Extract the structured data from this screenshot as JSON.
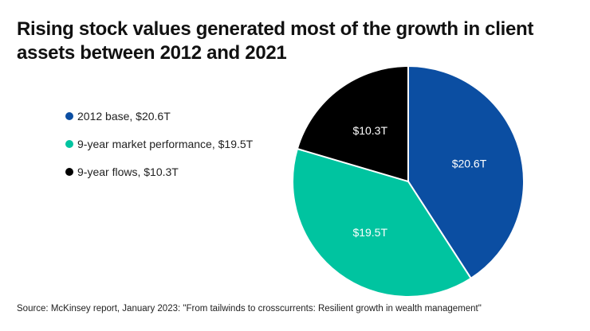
{
  "title": "Rising stock values generated most of the growth in client assets between 2012 and 2021",
  "source": "Source: McKinsey report, January 2023: \"From tailwinds to crosscurrents: Resilient growth in wealth management\"",
  "chart_data": {
    "type": "pie",
    "title": "Rising stock values generated most of the growth in client assets between 2012 and 2021",
    "legend_position": "left",
    "slices": [
      {
        "name": "2012 base, $20.6T",
        "value": 20.6,
        "label": "$20.6T",
        "color": "#0b4ea2"
      },
      {
        "name": "9-year market performance, $19.5T",
        "value": 19.5,
        "label": "$19.5T",
        "color": "#00c4a0"
      },
      {
        "name": "9-year flows, $10.3T",
        "value": 10.3,
        "label": "$10.3T",
        "color": "#000000"
      }
    ]
  }
}
